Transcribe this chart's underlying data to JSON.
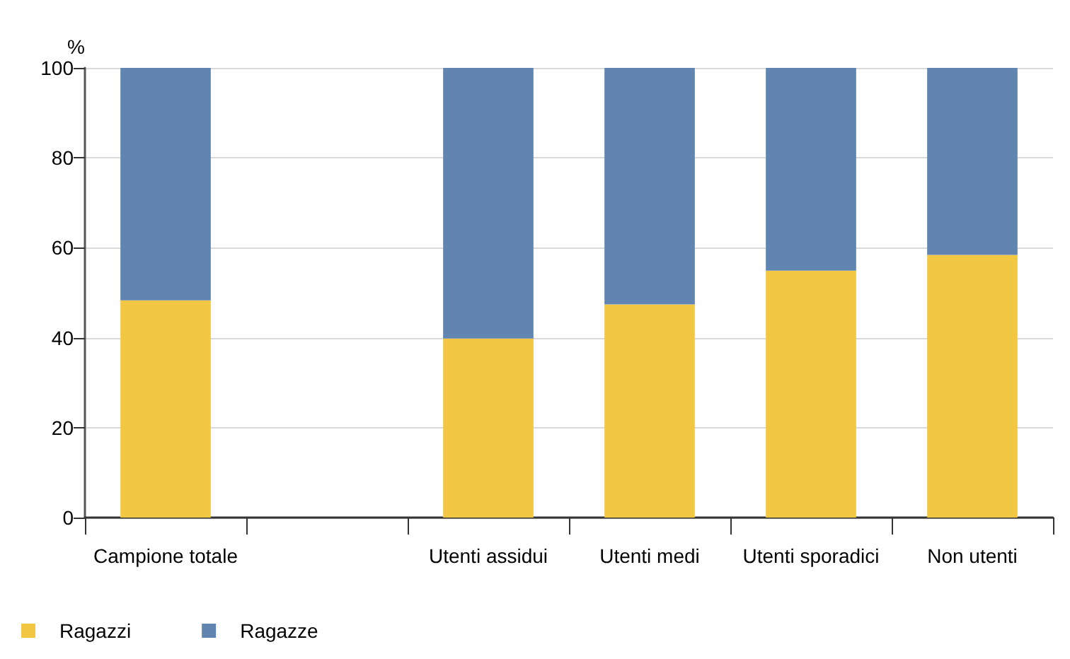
{
  "chart_data": {
    "type": "bar",
    "stacked": true,
    "ylabel": "%",
    "categories": [
      "Campione totale",
      null,
      "Utenti assidui",
      "Utenti medi",
      "Utenti sporadici",
      "Non utenti"
    ],
    "series": [
      {
        "name": "Ragazzi",
        "color": "#f2c744",
        "values": [
          48.3,
          null,
          39.8,
          47.4,
          54.9,
          58.4
        ]
      },
      {
        "name": "Ragazze",
        "color": "#6184b0",
        "values": [
          51.7,
          null,
          60.2,
          52.6,
          45.1,
          41.6
        ]
      }
    ],
    "ylim": [
      0,
      100
    ],
    "yticks": [
      0,
      20,
      40,
      60,
      80,
      100
    ],
    "grid": "y",
    "legend": "bottom left"
  }
}
